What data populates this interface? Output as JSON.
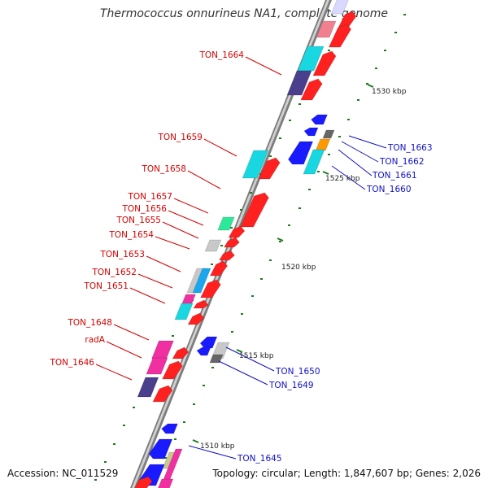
{
  "title": "Thermococcus onnurineus NA1, complete genome",
  "footer": {
    "accession": "Accession: NC_011529",
    "topology": "Topology: circular; Length: 1,847,607 bp; Genes: 2,026"
  },
  "colors": {
    "backbone": "#8c8c8c",
    "forward_label": "#d40000",
    "reverse_label": "#1010c8",
    "tick": "#1f7a1f"
  },
  "kbp_labels": [
    {
      "id": "k1530",
      "text": "1530 kbp"
    },
    {
      "id": "k1525",
      "text": "1525 kbp"
    },
    {
      "id": "k1520",
      "text": "1520 kbp"
    },
    {
      "id": "k1515",
      "text": "1515 kbp"
    },
    {
      "id": "k1510",
      "text": "1510 kbp"
    }
  ],
  "gene_labels": [
    {
      "id": "ton-1664",
      "text": "TON_1664",
      "strand": "forward"
    },
    {
      "id": "ton-1659",
      "text": "TON_1659",
      "strand": "forward"
    },
    {
      "id": "ton-1658",
      "text": "TON_1658",
      "strand": "forward"
    },
    {
      "id": "ton-1657",
      "text": "TON_1657",
      "strand": "forward"
    },
    {
      "id": "ton-1656",
      "text": "TON_1656",
      "strand": "forward"
    },
    {
      "id": "ton-1655",
      "text": "TON_1655",
      "strand": "forward"
    },
    {
      "id": "ton-1654",
      "text": "TON_1654",
      "strand": "forward"
    },
    {
      "id": "ton-1653",
      "text": "TON_1653",
      "strand": "forward"
    },
    {
      "id": "ton-1652",
      "text": "TON_1652",
      "strand": "forward"
    },
    {
      "id": "ton-1651",
      "text": "TON_1651",
      "strand": "forward"
    },
    {
      "id": "ton-1648",
      "text": "TON_1648",
      "strand": "forward"
    },
    {
      "id": "rada",
      "text": "radA",
      "strand": "forward"
    },
    {
      "id": "ton-1646",
      "text": "TON_1646",
      "strand": "forward"
    },
    {
      "id": "ton-1663",
      "text": "TON_1663",
      "strand": "reverse"
    },
    {
      "id": "ton-1662",
      "text": "TON_1662",
      "strand": "reverse"
    },
    {
      "id": "ton-1661",
      "text": "TON_1661",
      "strand": "reverse"
    },
    {
      "id": "ton-1660",
      "text": "TON_1660",
      "strand": "reverse"
    },
    {
      "id": "ton-1650",
      "text": "TON_1650",
      "strand": "reverse"
    },
    {
      "id": "ton-1649",
      "text": "TON_1649",
      "strand": "reverse"
    },
    {
      "id": "ton-1645",
      "text": "TON_1645",
      "strand": "reverse"
    }
  ]
}
